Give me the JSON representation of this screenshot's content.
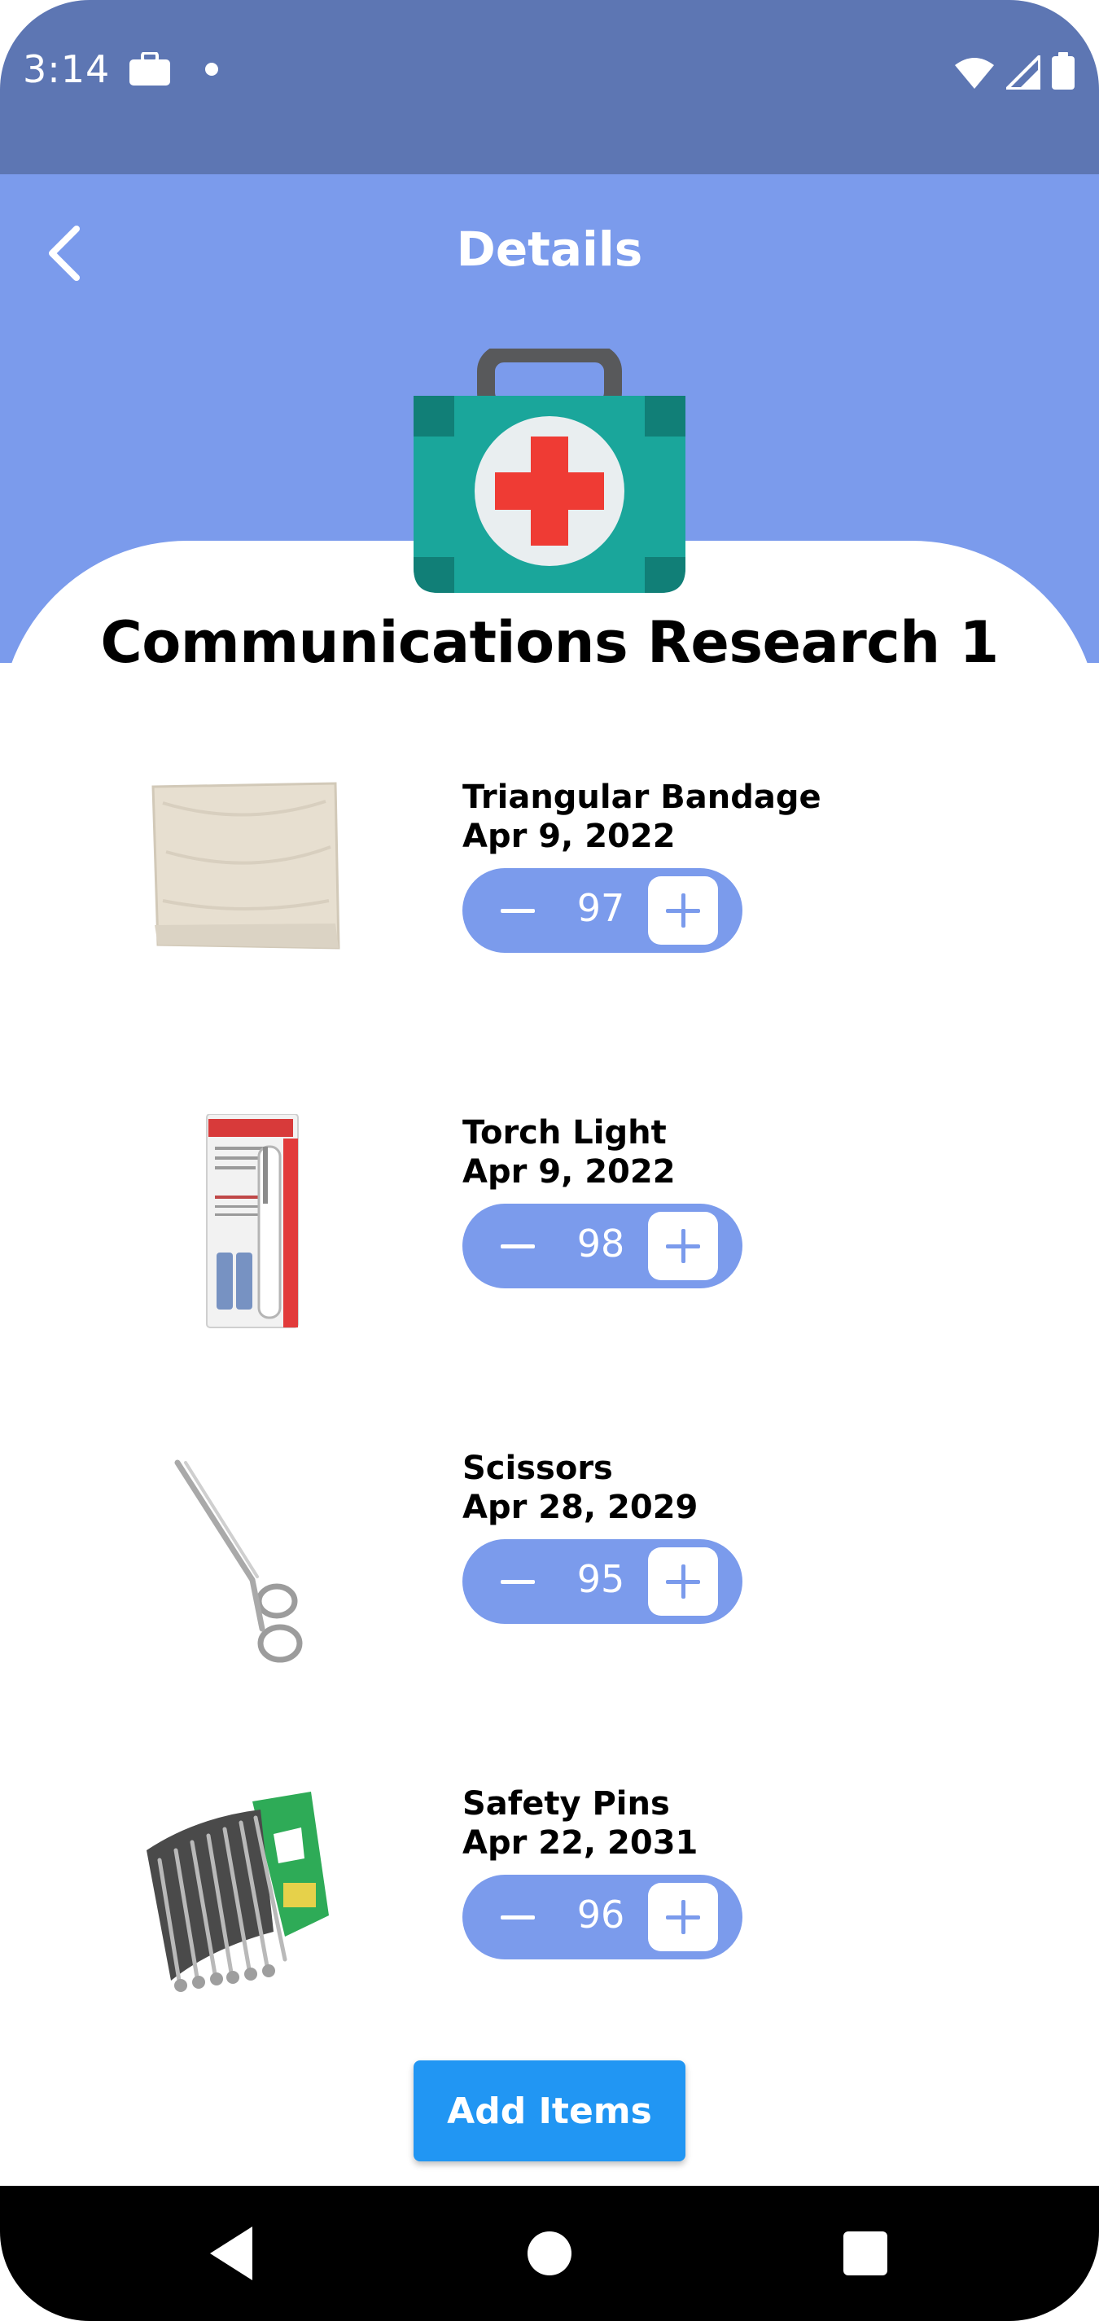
{
  "status_bar": {
    "time": "3:14",
    "icons": [
      "briefcase-icon",
      "notification-dot-icon",
      "wifi-icon",
      "signal-icon",
      "battery-icon"
    ]
  },
  "header": {
    "title": "Details",
    "back_icon": "chevron-left-icon"
  },
  "kit": {
    "icon": "first-aid-kit-icon",
    "title": "Communications Research 1"
  },
  "items": [
    {
      "name": "Triangular Bandage",
      "date": "Apr 9, 2022",
      "quantity": "97",
      "image": "bandage-image"
    },
    {
      "name": "Torch Light",
      "date": "Apr 9, 2022",
      "quantity": "98",
      "image": "torch-light-image"
    },
    {
      "name": "Scissors",
      "date": "Apr 28, 2029",
      "quantity": "95",
      "image": "scissors-image"
    },
    {
      "name": "Safety Pins",
      "date": "Apr 22, 2031",
      "quantity": "96",
      "image": "safety-pins-image"
    }
  ],
  "actions": {
    "add_items_label": "Add Items"
  },
  "colors": {
    "status_bar": "#5d76b3",
    "header": "#7b9bec",
    "stepper": "#7b9bec",
    "button": "#2196f3",
    "kit_green": "#1aa69b",
    "kit_cross": "#ef3b34"
  }
}
